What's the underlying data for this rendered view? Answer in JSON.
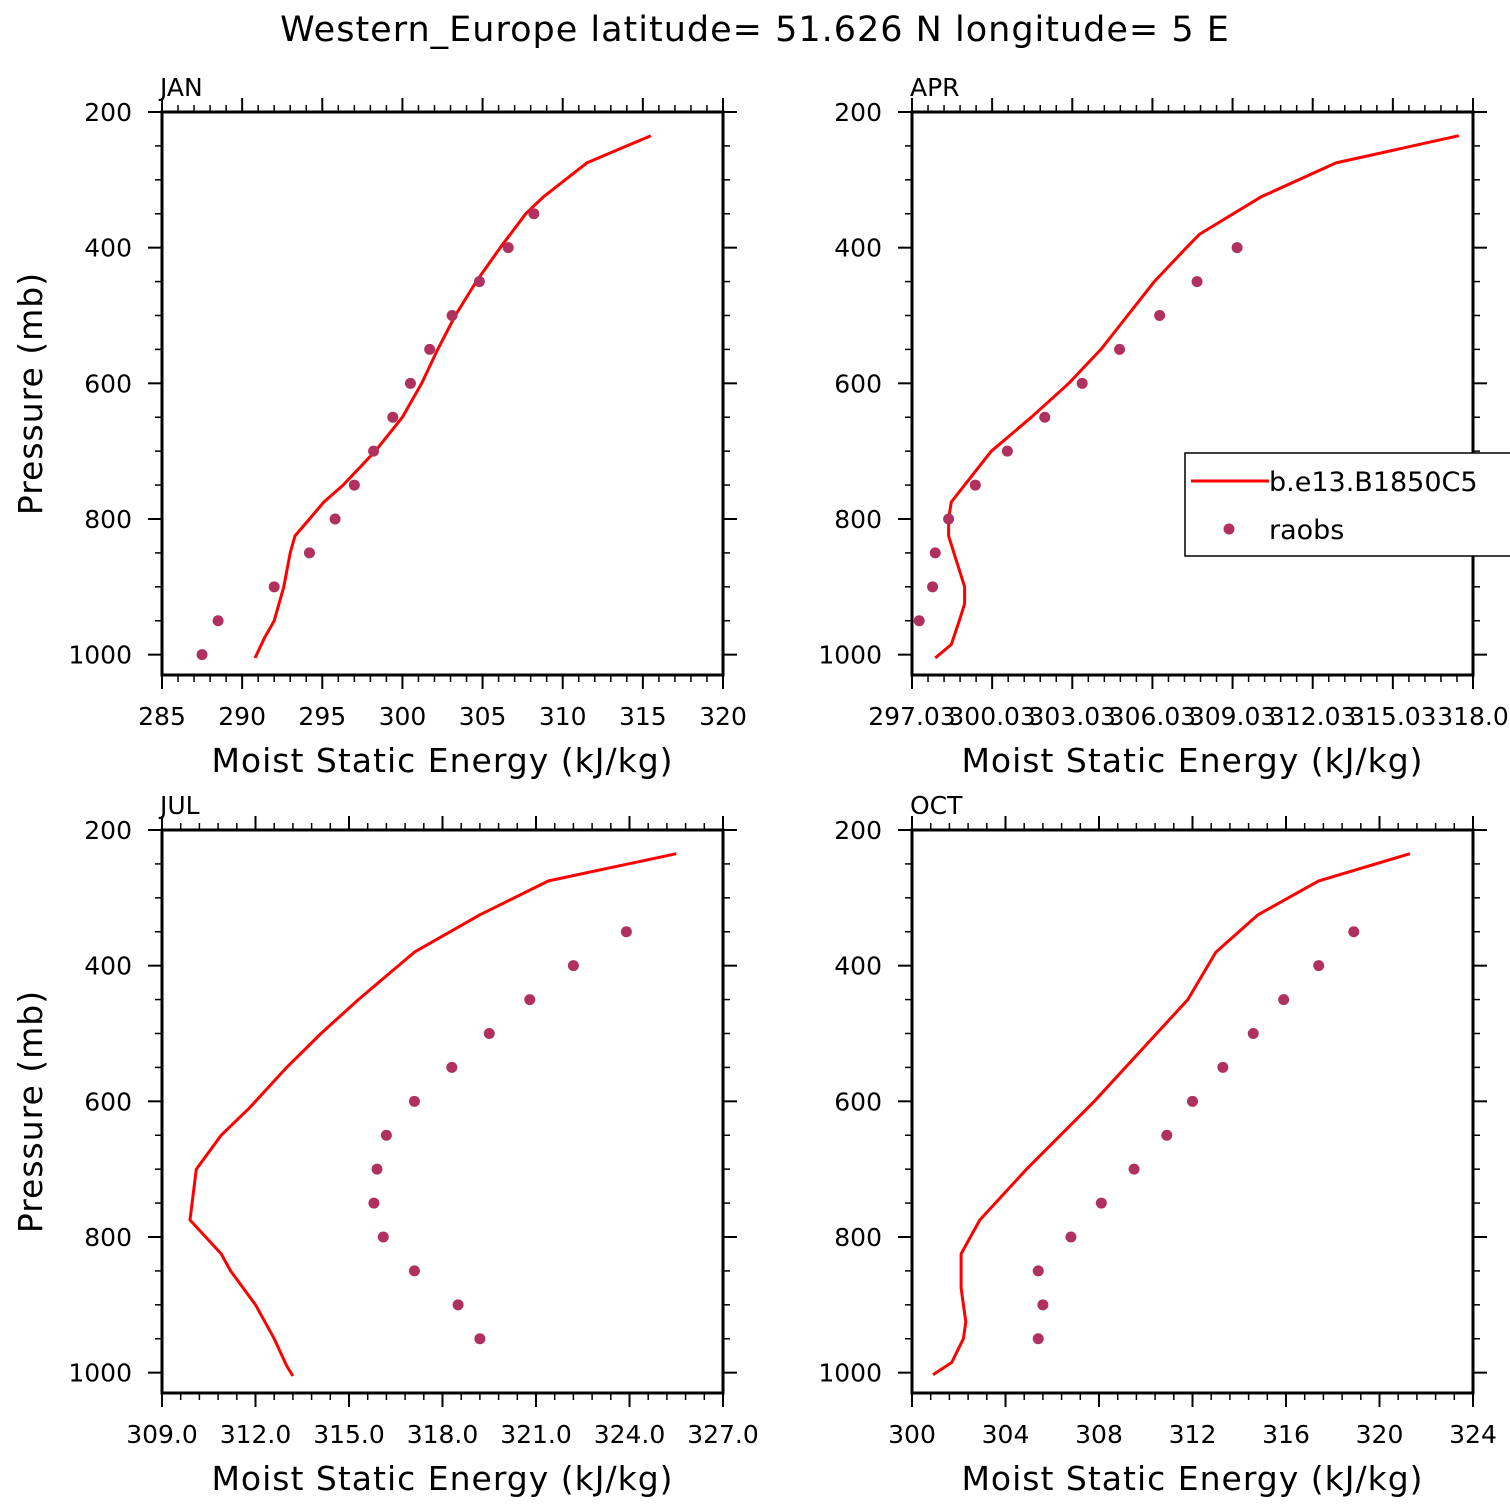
{
  "title": "Western_Europe  latitude= 51.626 N longitude= 5 E",
  "colors": {
    "model": "#ff0000",
    "obs": "#b03060",
    "axis": "#000000"
  },
  "chart_data": [
    {
      "type": "line",
      "panel_label": "JAN",
      "xlabel": "Moist Static Energy (kJ/kg)",
      "ylabel": "Pressure (mb)",
      "xlim": [
        285,
        320
      ],
      "ylim": [
        1030,
        200
      ],
      "x_ticks": [
        285,
        290,
        295,
        300,
        305,
        310,
        315,
        320
      ],
      "x_tick_labels": [
        "285",
        "290",
        "295",
        "300",
        "305",
        "310",
        "315",
        "320"
      ],
      "y_ticks": [
        200,
        400,
        600,
        800,
        1000
      ],
      "y_tick_labels": [
        "200",
        "400",
        "600",
        "800",
        "1000"
      ],
      "series": [
        {
          "kind": "line",
          "pressure": [
            1005,
            975,
            950,
            925,
            900,
            875,
            850,
            825,
            800,
            775,
            750,
            700,
            650,
            600,
            550,
            500,
            450,
            400,
            350,
            325,
            275,
            235
          ],
          "x": [
            290.8,
            291.4,
            292.0,
            292.3,
            292.6,
            292.8,
            293.0,
            293.3,
            294.2,
            295.1,
            296.3,
            298.3,
            300.0,
            301.2,
            302.2,
            303.3,
            304.6,
            306.1,
            307.7,
            308.8,
            311.5,
            315.5
          ]
        },
        {
          "name": "raobs",
          "kind": "points",
          "pressure": [
            1000,
            950,
            900,
            850,
            800,
            750,
            700,
            650,
            600,
            550,
            500,
            450,
            400,
            350
          ],
          "x": [
            287.5,
            288.5,
            292.0,
            294.2,
            295.8,
            297.0,
            298.2,
            299.4,
            300.5,
            301.7,
            303.1,
            304.8,
            306.6,
            308.2
          ]
        }
      ]
    },
    {
      "type": "line",
      "panel_label": "APR",
      "xlabel": "Moist Static Energy (kJ/kg)",
      "ylabel": "",
      "xlim": [
        297.03,
        318.03
      ],
      "ylim": [
        1030,
        200
      ],
      "x_ticks": [
        297.03,
        300.03,
        303.03,
        306.03,
        309.03,
        312.03,
        315.03,
        318.03
      ],
      "x_tick_labels": [
        "297.03",
        "300.03",
        "303.03",
        "306.03",
        "309.03",
        "312.03",
        "315.03",
        "318.0"
      ],
      "y_ticks": [
        200,
        400,
        600,
        800,
        1000
      ],
      "y_tick_labels": [
        "200",
        "400",
        "600",
        "800",
        "1000"
      ],
      "legend": {
        "position": "right",
        "entries": [
          "b.e13.B1850C5",
          "raobs"
        ]
      },
      "series": [
        {
          "name": "b.e13.B1850C5",
          "kind": "line",
          "pressure": [
            1005,
            985,
            950,
            925,
            900,
            875,
            850,
            825,
            800,
            775,
            750,
            700,
            650,
            600,
            550,
            500,
            450,
            400,
            380,
            325,
            275,
            235
          ],
          "x": [
            297.9,
            298.5,
            298.8,
            299.0,
            299.0,
            298.8,
            298.6,
            298.4,
            298.4,
            298.5,
            299.0,
            300.0,
            301.5,
            302.9,
            304.1,
            305.1,
            306.1,
            307.3,
            307.8,
            310.1,
            312.9,
            317.5
          ]
        },
        {
          "name": "raobs",
          "kind": "points",
          "pressure": [
            950,
            900,
            850,
            800,
            750,
            700,
            650,
            600,
            550,
            500,
            450,
            400
          ],
          "x": [
            297.3,
            297.8,
            297.9,
            298.4,
            299.4,
            300.6,
            302.0,
            303.4,
            304.8,
            306.3,
            307.7,
            309.2
          ]
        }
      ]
    },
    {
      "type": "line",
      "panel_label": "JUL",
      "xlabel": "Moist Static Energy (kJ/kg)",
      "ylabel": "Pressure (mb)",
      "xlim": [
        309,
        327
      ],
      "ylim": [
        1030,
        200
      ],
      "x_ticks": [
        309,
        312,
        315,
        318,
        321,
        324,
        327
      ],
      "x_tick_labels": [
        "309.0",
        "312.0",
        "315.0",
        "318.0",
        "321.0",
        "324.0",
        "327.0"
      ],
      "y_ticks": [
        200,
        400,
        600,
        800,
        1000
      ],
      "y_tick_labels": [
        "200",
        "400",
        "600",
        "800",
        "1000"
      ],
      "series": [
        {
          "kind": "line",
          "pressure": [
            1005,
            990,
            950,
            900,
            850,
            825,
            775,
            700,
            650,
            610,
            550,
            500,
            450,
            380,
            325,
            275,
            235
          ],
          "x": [
            313.2,
            313.0,
            312.6,
            312.0,
            311.2,
            310.9,
            309.9,
            310.1,
            310.9,
            311.8,
            313.0,
            314.1,
            315.3,
            317.1,
            319.2,
            321.4,
            325.5
          ]
        },
        {
          "name": "raobs",
          "kind": "points",
          "pressure": [
            950,
            900,
            850,
            800,
            750,
            700,
            650,
            600,
            550,
            500,
            450,
            400,
            350
          ],
          "x": [
            319.2,
            318.5,
            317.1,
            316.1,
            315.8,
            315.9,
            316.2,
            317.1,
            318.3,
            319.5,
            320.8,
            322.2,
            323.9
          ]
        }
      ]
    },
    {
      "type": "line",
      "panel_label": "OCT",
      "xlabel": "Moist Static Energy (kJ/kg)",
      "ylabel": "",
      "xlim": [
        300,
        324
      ],
      "ylim": [
        1030,
        200
      ],
      "x_ticks": [
        300,
        304,
        308,
        312,
        316,
        320,
        324
      ],
      "x_tick_labels": [
        "300",
        "304",
        "308",
        "312",
        "316",
        "320",
        "324"
      ],
      "y_ticks": [
        200,
        400,
        600,
        800,
        1000
      ],
      "y_tick_labels": [
        "200",
        "400",
        "600",
        "800",
        "1000"
      ],
      "series": [
        {
          "kind": "line",
          "pressure": [
            1003,
            985,
            950,
            925,
            900,
            875,
            850,
            825,
            775,
            700,
            600,
            450,
            380,
            325,
            275,
            235
          ],
          "x": [
            300.9,
            301.7,
            302.2,
            302.3,
            302.2,
            302.1,
            302.1,
            302.1,
            302.9,
            304.9,
            307.8,
            311.8,
            313.0,
            314.8,
            317.4,
            321.3
          ]
        },
        {
          "name": "raobs",
          "kind": "points",
          "pressure": [
            950,
            900,
            850,
            800,
            750,
            700,
            650,
            600,
            550,
            500,
            450,
            400,
            350
          ],
          "x": [
            305.4,
            305.6,
            305.4,
            306.8,
            308.1,
            309.5,
            310.9,
            312.0,
            313.3,
            314.6,
            315.9,
            317.4,
            318.9
          ]
        }
      ]
    }
  ]
}
